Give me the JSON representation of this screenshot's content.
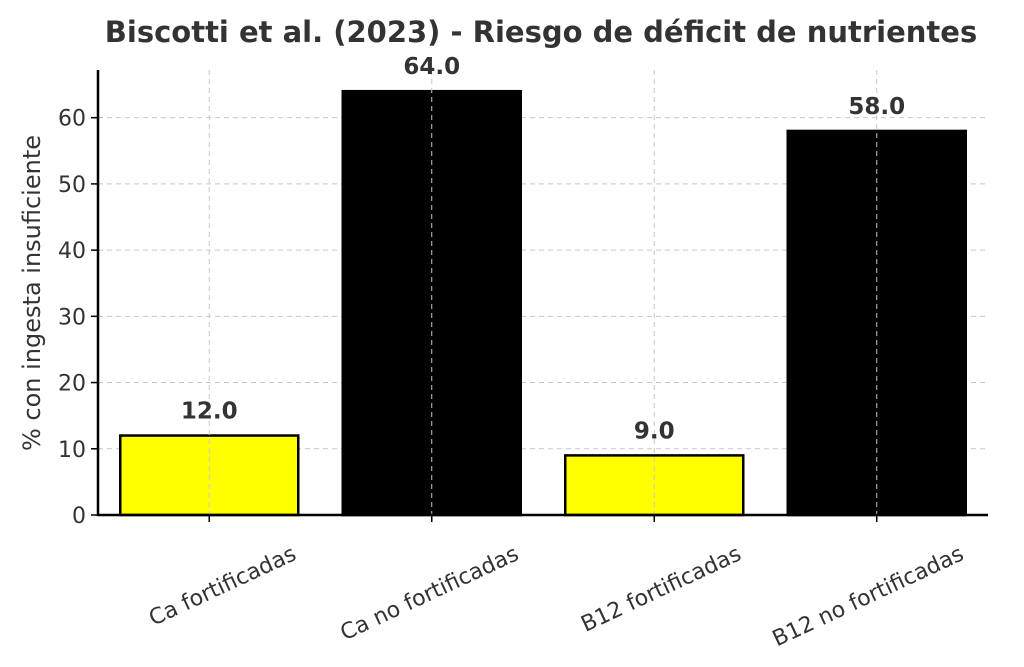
{
  "chart_data": {
    "type": "bar",
    "title": "Biscotti et al. (2023) - Riesgo de déficit de nutrientes",
    "xlabel": "",
    "ylabel": "% con ingesta insuficiente",
    "categories": [
      "Ca fortificadas",
      "Ca no fortificadas",
      "B12 fortificadas",
      "B12 no fortificadas"
    ],
    "values": [
      12.0,
      64.0,
      9.0,
      58.0
    ],
    "data_labels": [
      "12.0",
      "64.0",
      "9.0",
      "58.0"
    ],
    "bar_colors": [
      "#ffff00",
      "#000000",
      "#ffff00",
      "#000000"
    ],
    "bar_edge_color": "#000000",
    "yticks": [
      0,
      10,
      20,
      30,
      40,
      50,
      60
    ],
    "ylim": [
      0,
      67.2
    ],
    "grid": true,
    "legend": "none"
  }
}
